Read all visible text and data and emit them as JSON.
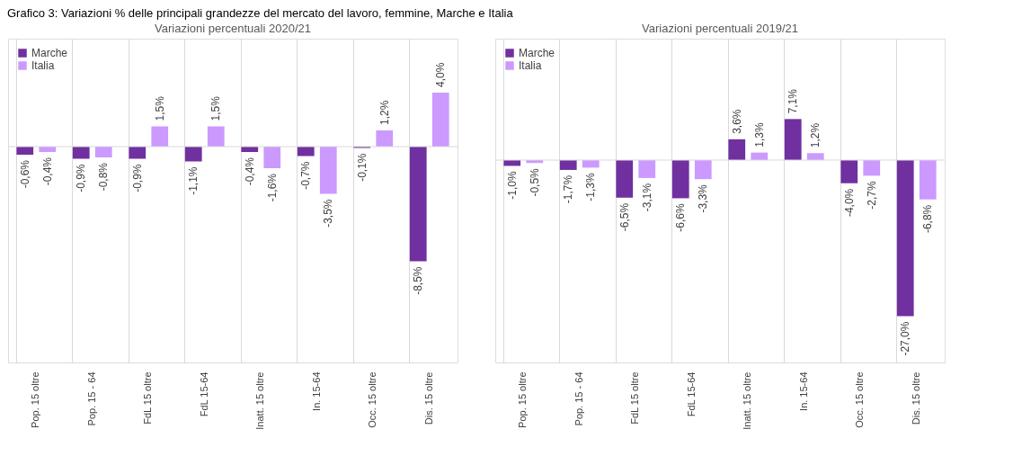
{
  "chart_data": [
    {
      "type": "bar",
      "title": "Variazioni percentuali 2020/21",
      "annotations": [
        "Grafico 3: Variazioni % delle principali grandezze del mercato del lavoro, femmine, Marche e Italia"
      ],
      "categories": [
        "Pop. 15 oltre",
        "Pop. 15 - 64",
        "FdL 15 oltre",
        "FdL 15-64",
        "Inatt. 15 oltre",
        "In. 15-64",
        "Occ. 15 oltre",
        "Dis. 15 oltre"
      ],
      "series": [
        {
          "name": "Marche",
          "color": "#7030a0",
          "values": [
            -0.6,
            -0.9,
            -0.9,
            -1.1,
            -0.4,
            -0.7,
            -0.1,
            -8.5
          ],
          "value_labels": [
            "-0,6%",
            "-0,9%",
            "-0,9%",
            "-1,1%",
            "-0,4%",
            "-0,7%",
            "-0,1%",
            "-8,5%"
          ]
        },
        {
          "name": "Italia",
          "color": "#cc99ff",
          "values": [
            -0.4,
            -0.8,
            1.5,
            1.5,
            -1.6,
            -3.5,
            1.2,
            4.0
          ],
          "value_labels": [
            "-0,4%",
            "-0,8%",
            "1,5%",
            "1,5%",
            "-1,6%",
            "-3,5%",
            "1,2%",
            "4,0%"
          ]
        }
      ],
      "ylim": [
        -16,
        8
      ],
      "tick_labels": "x",
      "grid": true,
      "legend": "top left"
    },
    {
      "type": "bar",
      "title": "Variazioni percentuali 2019/21",
      "categories": [
        "Pop. 15 oltre",
        "Pop. 15 - 64",
        "FdL 15 oltre",
        "FdL 15-64",
        "Inatt. 15 oltre",
        "In. 15-64",
        "Occ. 15 oltre",
        "Dis. 15 oltre"
      ],
      "series": [
        {
          "name": "Marche",
          "color": "#7030a0",
          "values": [
            -1.0,
            -1.7,
            -6.5,
            -6.6,
            3.6,
            7.1,
            -4.0,
            -27.0
          ],
          "value_labels": [
            "-1,0%",
            "-1,7%",
            "-6,5%",
            "-6,6%",
            "3,6%",
            "7,1%",
            "-4,0%",
            "-27,0%"
          ]
        },
        {
          "name": "Italia",
          "color": "#cc99ff",
          "values": [
            -0.5,
            -1.3,
            -3.1,
            -3.3,
            1.3,
            1.2,
            -2.7,
            -6.8
          ],
          "value_labels": [
            "-0,5%",
            "-1,3%",
            "-3,1%",
            "-3,3%",
            "1,3%",
            "1,2%",
            "-2,7%",
            "-6,8%"
          ]
        }
      ],
      "ylim": [
        -35,
        21
      ],
      "tick_labels": "x",
      "grid": true,
      "legend": "top left"
    }
  ]
}
